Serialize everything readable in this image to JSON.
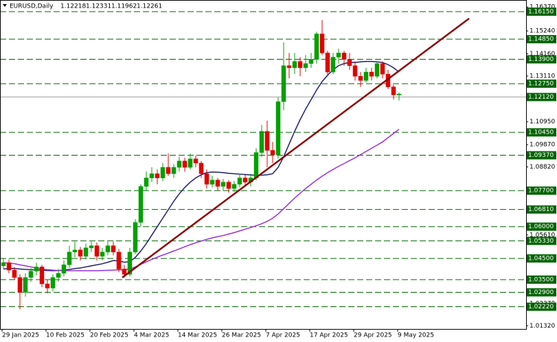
{
  "chart_data": {
    "type": "candlestick",
    "symbol": "EURUSD,Daily",
    "categories": [
      "29 Jan 2025",
      null,
      null,
      null,
      null,
      null,
      null,
      null,
      "10 Feb 2025",
      null,
      null,
      null,
      null,
      null,
      null,
      null,
      "20 Feb 2025",
      null,
      null,
      null,
      null,
      null,
      null,
      null,
      "4 Mar 2025",
      null,
      null,
      null,
      null,
      null,
      null,
      null,
      "14 Mar 2025",
      null,
      null,
      null,
      null,
      null,
      null,
      null,
      "26 Mar 2025",
      null,
      null,
      null,
      null,
      null,
      null,
      null,
      "7 Apr 2025",
      null,
      null,
      null,
      null,
      null,
      null,
      null,
      "17 Apr 2025",
      null,
      null,
      null,
      null,
      null,
      null,
      null,
      "29 Apr 2025",
      null,
      null,
      null,
      null,
      null,
      null,
      null,
      "9 May 2025"
    ],
    "open": [
      1.0415,
      1.043,
      1.0395,
      1.036,
      1.029,
      1.036,
      1.039,
      1.041,
      1.033,
      1.031,
      1.036,
      1.038,
      1.042,
      1.048,
      1.049,
      1.046,
      1.05,
      1.051,
      1.046,
      1.048,
      1.051,
      1.048,
      1.04,
      1.0375,
      1.048,
      1.062,
      1.079,
      1.083,
      1.085,
      1.083,
      1.088,
      1.085,
      1.088,
      1.091,
      1.088,
      1.092,
      1.09,
      1.085,
      1.08,
      1.082,
      1.079,
      1.081,
      1.078,
      1.08,
      1.083,
      1.081,
      1.083,
      1.095,
      1.105,
      1.096,
      1.094,
      1.119,
      1.136,
      1.135,
      1.138,
      1.135,
      1.137,
      1.139,
      1.151,
      1.142,
      1.133,
      1.14,
      1.142,
      1.139,
      1.136,
      1.131,
      1.129,
      1.133,
      1.131,
      1.137,
      1.132,
      1.126,
      1.12218
    ],
    "high": [
      1.045,
      1.0445,
      1.041,
      1.0375,
      1.038,
      1.0405,
      1.043,
      1.042,
      1.035,
      1.0375,
      1.04,
      1.044,
      1.051,
      1.053,
      1.0505,
      1.052,
      1.053,
      1.0525,
      1.05,
      1.053,
      1.053,
      1.0495,
      1.042,
      1.05,
      1.0635,
      1.08,
      1.086,
      1.088,
      1.087,
      1.09,
      1.0945,
      1.0895,
      1.093,
      1.0925,
      1.0945,
      1.0935,
      1.091,
      1.087,
      1.084,
      1.083,
      1.0825,
      1.082,
      1.0815,
      1.085,
      1.0845,
      1.085,
      1.097,
      1.108,
      1.11,
      1.1,
      1.121,
      1.147,
      1.142,
      1.142,
      1.14,
      1.141,
      1.142,
      1.152,
      1.1575,
      1.143,
      1.142,
      1.144,
      1.143,
      1.142,
      1.138,
      1.133,
      1.135,
      1.135,
      1.138,
      1.138,
      1.134,
      1.127,
      1.12331
    ],
    "low": [
      1.04,
      1.038,
      1.035,
      1.021,
      1.027,
      1.034,
      1.037,
      1.0315,
      1.0285,
      1.0295,
      1.034,
      1.0365,
      1.0405,
      1.0455,
      1.044,
      1.0445,
      1.048,
      1.044,
      1.044,
      1.0465,
      1.0465,
      1.0385,
      1.036,
      1.0365,
      1.047,
      1.06,
      1.077,
      1.081,
      1.08,
      1.0815,
      1.084,
      1.083,
      1.086,
      1.086,
      1.087,
      1.088,
      1.083,
      1.078,
      1.0785,
      1.077,
      1.077,
      1.076,
      1.0765,
      1.0785,
      1.079,
      1.079,
      1.082,
      1.093,
      1.088,
      1.09,
      1.092,
      1.115,
      1.13,
      1.132,
      1.131,
      1.133,
      1.135,
      1.137,
      1.141,
      1.131,
      1.132,
      1.137,
      1.136,
      1.134,
      1.129,
      1.126,
      1.128,
      1.129,
      1.13,
      1.13,
      1.125,
      1.12,
      1.11962
    ],
    "close": [
      1.043,
      1.0395,
      1.036,
      1.029,
      1.036,
      1.039,
      1.041,
      1.033,
      1.031,
      1.036,
      1.038,
      1.042,
      1.048,
      1.049,
      1.046,
      1.05,
      1.051,
      1.046,
      1.048,
      1.051,
      1.048,
      1.04,
      1.0375,
      1.048,
      1.062,
      1.079,
      1.083,
      1.085,
      1.083,
      1.088,
      1.085,
      1.088,
      1.091,
      1.088,
      1.092,
      1.09,
      1.085,
      1.08,
      1.082,
      1.079,
      1.081,
      1.078,
      1.08,
      1.083,
      1.081,
      1.083,
      1.095,
      1.105,
      1.096,
      1.094,
      1.119,
      1.136,
      1.135,
      1.138,
      1.135,
      1.137,
      1.139,
      1.151,
      1.142,
      1.133,
      1.14,
      1.142,
      1.139,
      1.136,
      1.131,
      1.129,
      1.133,
      1.131,
      1.137,
      1.132,
      1.126,
      1.1222,
      1.12261
    ],
    "bull_color": "#00a000",
    "bear_color": "#e00000",
    "series": [
      {
        "color": "#1c1f6e",
        "values": [
          1.04,
          1.0402,
          1.0403,
          1.04,
          1.0398,
          1.0397,
          1.0396,
          1.0395,
          1.0393,
          1.0392,
          1.0393,
          1.0395,
          1.0398,
          1.0402,
          1.0405,
          1.041,
          1.0415,
          1.042,
          1.0425,
          1.0432,
          1.044,
          1.0438,
          1.0432,
          1.0435,
          1.0455,
          1.0485,
          1.052,
          1.056,
          1.06,
          1.064,
          1.068,
          1.072,
          1.0755,
          1.0785,
          1.081,
          1.083,
          1.0845,
          1.0855,
          1.0858,
          1.0857,
          1.0855,
          1.0852,
          1.085,
          1.0848,
          1.0846,
          1.0844,
          1.0842,
          1.0843,
          1.0845,
          1.085,
          1.088,
          1.093,
          1.099,
          1.105,
          1.1105,
          1.1155,
          1.12,
          1.1245,
          1.1285,
          1.1315,
          1.134,
          1.136,
          1.137,
          1.1375,
          1.1375,
          1.1378,
          1.138,
          1.138,
          1.1378,
          1.1375,
          1.1365,
          1.135,
          1.133
        ]
      },
      {
        "color": "#9a2fd6",
        "values": [
          1.043,
          1.0428,
          1.0425,
          1.042,
          1.0415,
          1.041,
          1.0405,
          1.04,
          1.0397,
          1.0395,
          1.0393,
          1.0392,
          1.0392,
          1.0392,
          1.0392,
          1.0392,
          1.0392,
          1.0392,
          1.0393,
          1.0394,
          1.0395,
          1.0396,
          1.0397,
          1.04,
          1.041,
          1.0422,
          1.0434,
          1.0445,
          1.0456,
          1.0466,
          1.0475,
          1.0485,
          1.0495,
          1.0505,
          1.0515,
          1.0524,
          1.0532,
          1.054,
          1.0547,
          1.0553,
          1.0558,
          1.0565,
          1.0572,
          1.058,
          1.0588,
          1.0596,
          1.0604,
          1.0614,
          1.0625,
          1.064,
          1.066,
          1.0685,
          1.071,
          1.0735,
          1.0758,
          1.078,
          1.08,
          1.082,
          1.0838,
          1.0855,
          1.087,
          1.0885,
          1.0898,
          1.0912,
          1.0925,
          1.094,
          1.0955,
          1.097,
          1.0985,
          1.1,
          1.102,
          1.104,
          1.106
        ]
      }
    ],
    "ylim": [
      1.0117,
      1.167
    ],
    "yticks": [
      {
        "value": 1.1637,
        "label": "1.16370"
      },
      {
        "value": 1.1524,
        "label": "1.15240"
      },
      {
        "value": 1.1416,
        "label": "1.14160"
      },
      {
        "value": 1.1311,
        "label": "1.13110"
      },
      {
        "value": 1.1095,
        "label": "1.10950"
      },
      {
        "value": 1.0987,
        "label": "1.09870"
      },
      {
        "value": 1.0882,
        "label": "1.08820"
      },
      {
        "value": 1.0561,
        "label": "1.05610"
      },
      {
        "value": 1.0237,
        "label": "1.02370"
      },
      {
        "value": 1.0132,
        "label": "1.01320"
      }
    ],
    "levels": [
      {
        "value": 1.1615,
        "label": "1.16150"
      },
      {
        "value": 1.1485,
        "label": "1.14850"
      },
      {
        "value": 1.139,
        "label": "1.13900"
      },
      {
        "value": 1.1275,
        "label": "1.12750"
      },
      {
        "value": 1.1045,
        "label": "1.10450"
      },
      {
        "value": 1.0937,
        "label": "1.09370"
      },
      {
        "value": 1.077,
        "label": "1.07700"
      },
      {
        "value": 1.0681,
        "label": "1.06810"
      },
      {
        "value": 1.06,
        "label": "1.06000"
      },
      {
        "value": 1.0533,
        "label": "1.05330"
      },
      {
        "value": 1.045,
        "label": "1.04500"
      },
      {
        "value": 1.035,
        "label": "1.03500"
      },
      {
        "value": 1.029,
        "label": "1.02900"
      },
      {
        "value": 1.0222,
        "label": "1.02220"
      }
    ],
    "level_color": "#006400",
    "bid_line": {
      "value": 1.1212,
      "label": "1.12120"
    }
  }
}
